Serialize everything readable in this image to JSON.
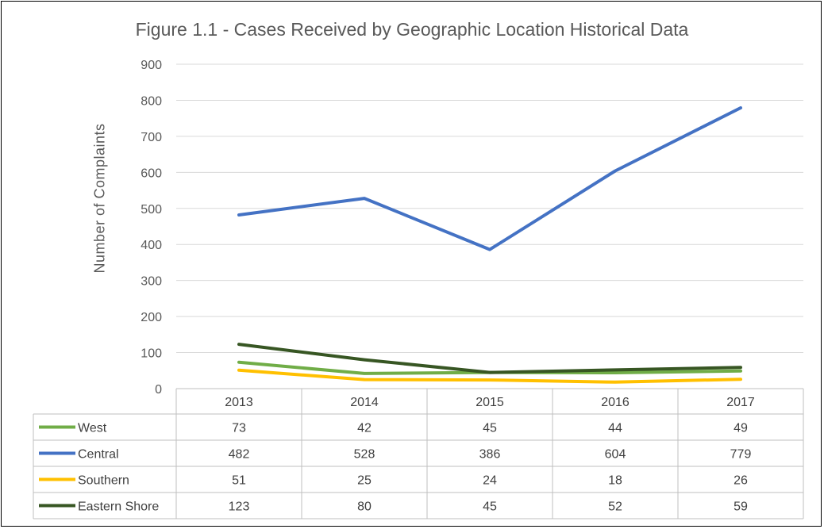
{
  "chart_data": {
    "type": "line",
    "title": "Figure 1.1 - Cases Received by Geographic Location Historical Data",
    "ylabel": "Number of Complaints",
    "xlabel": "",
    "ylim": [
      0,
      900
    ],
    "yticks": [
      0,
      100,
      200,
      300,
      400,
      500,
      600,
      700,
      800,
      900
    ],
    "categories": [
      "2013",
      "2014",
      "2015",
      "2016",
      "2017"
    ],
    "grid": true,
    "legend": "data-table",
    "series": [
      {
        "name": "West",
        "color": "#70ad47",
        "values": [
          73,
          42,
          45,
          44,
          49
        ]
      },
      {
        "name": "Central",
        "color": "#4472c4",
        "values": [
          482,
          528,
          386,
          604,
          779
        ]
      },
      {
        "name": "Southern",
        "color": "#ffc000",
        "values": [
          51,
          25,
          24,
          18,
          26
        ]
      },
      {
        "name": "Eastern Shore",
        "color": "#375623",
        "values": [
          123,
          80,
          45,
          52,
          59
        ]
      }
    ]
  }
}
